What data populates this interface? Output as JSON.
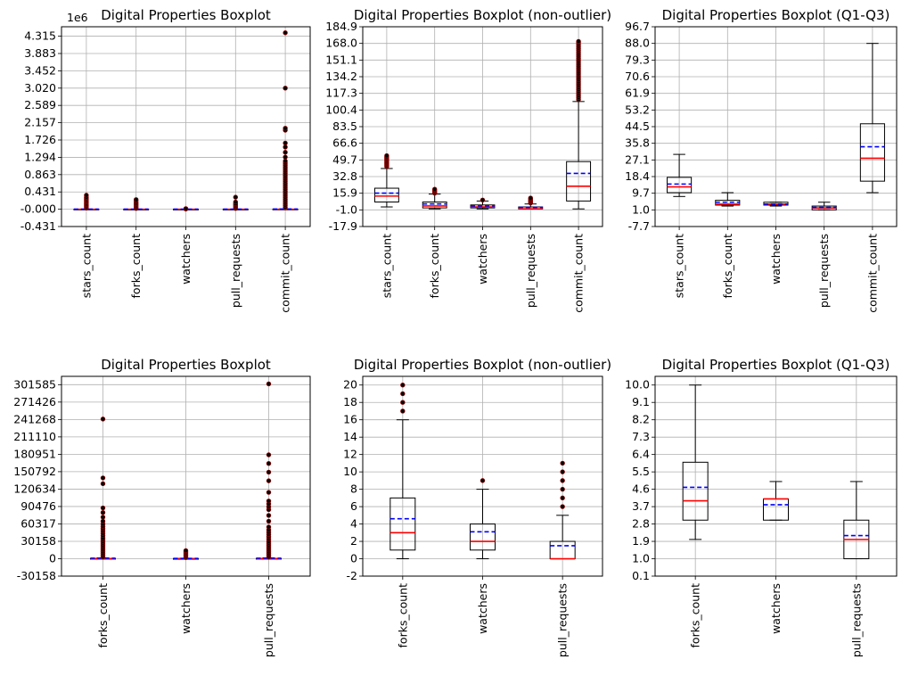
{
  "colors": {
    "median": "#ff0000",
    "mean": "#0000ff",
    "box": "#000000",
    "grid": "#b0b0b0",
    "flier_face": "#000000",
    "flier_edge": "#8b0000"
  },
  "chart_data": [
    {
      "type": "boxplot",
      "title": "Digital Properties Boxplot",
      "offset_text": "1e6",
      "categories": [
        "stars_count",
        "forks_count",
        "watchers",
        "pull_requests",
        "commit_count"
      ],
      "ylim": [
        -0.431,
        4.55
      ],
      "yticks": [
        -0.431,
        0,
        0.431,
        0.863,
        1.294,
        1.726,
        2.157,
        2.589,
        3.02,
        3.452,
        3.883,
        4.315
      ],
      "ytick_labels": [
        "-0.431",
        "-0.000",
        "0.431",
        "0.863",
        "1.294",
        "1.726",
        "2.157",
        "2.589",
        "3.020",
        "3.452",
        "3.883",
        "4.315"
      ],
      "grid": true,
      "boxes": [
        {
          "whislo": 0,
          "q1": 0,
          "med": 0,
          "q3": 0.002,
          "whishi": 0.005,
          "mean": 0.002
        },
        {
          "whislo": 0,
          "q1": 0,
          "med": 0,
          "q3": 0.001,
          "whishi": 0.003,
          "mean": 0.001
        },
        {
          "whislo": 0,
          "q1": 0,
          "med": 0,
          "q3": 0.001,
          "whishi": 0.002,
          "mean": 0.001
        },
        {
          "whislo": 0,
          "q1": 0,
          "med": 0,
          "q3": 0.001,
          "whishi": 0.002,
          "mean": 0.001
        },
        {
          "whislo": 0,
          "q1": 0,
          "med": 0,
          "q3": 0.003,
          "whishi": 0.01,
          "mean": 0.004
        }
      ],
      "fliers": [
        [
          0.03,
          0.06,
          0.09,
          0.12,
          0.15,
          0.18,
          0.21,
          0.24,
          0.27,
          0.3,
          0.35
        ],
        [
          0.02,
          0.05,
          0.08,
          0.11,
          0.14,
          0.17,
          0.21,
          0.24
        ],
        [
          0.005,
          0.01,
          0.015
        ],
        [
          0.02,
          0.05,
          0.08,
          0.11,
          0.14,
          0.18,
          0.3
        ],
        [
          0.05,
          0.1,
          0.15,
          0.2,
          0.25,
          0.3,
          0.35,
          0.4,
          0.45,
          0.5,
          0.55,
          0.6,
          0.65,
          0.7,
          0.75,
          0.8,
          0.85,
          0.9,
          0.95,
          1.0,
          1.05,
          1.1,
          1.15,
          1.2,
          1.3,
          1.42,
          1.55,
          1.65,
          1.97,
          2.02,
          3.02,
          4.4
        ]
      ]
    },
    {
      "type": "boxplot",
      "title": "Digital Properties Boxplot (non-outlier)",
      "categories": [
        "stars_count",
        "forks_count",
        "watchers",
        "pull_requests",
        "commit_count"
      ],
      "ylim": [
        -17.9,
        184.9
      ],
      "yticks": [
        -17.9,
        -1.0,
        15.9,
        32.8,
        49.7,
        66.6,
        83.5,
        100.4,
        117.3,
        134.2,
        151.1,
        168.0,
        184.9
      ],
      "ytick_labels": [
        "-17.9",
        "-1.0",
        "15.9",
        "32.8",
        "49.7",
        "66.6",
        "83.5",
        "100.4",
        "117.3",
        "134.2",
        "151.1",
        "168.0",
        "184.9"
      ],
      "grid": true,
      "boxes": [
        {
          "whislo": 2,
          "q1": 7,
          "med": 13,
          "q3": 21,
          "whishi": 41,
          "mean": 16
        },
        {
          "whislo": 0,
          "q1": 1,
          "med": 3,
          "q3": 7,
          "whishi": 15,
          "mean": 5
        },
        {
          "whislo": 0,
          "q1": 1,
          "med": 2,
          "q3": 4,
          "whishi": 8,
          "mean": 3
        },
        {
          "whislo": 0,
          "q1": 0,
          "med": 0,
          "q3": 2,
          "whishi": 5,
          "mean": 1.5
        },
        {
          "whislo": 0,
          "q1": 8,
          "med": 23,
          "q3": 48,
          "whishi": 109,
          "mean": 36
        }
      ],
      "fliers": [
        [
          43,
          44,
          45,
          46,
          47,
          48,
          49,
          50,
          51,
          52,
          53,
          54
        ],
        [
          16,
          17,
          18,
          19,
          20
        ],
        [
          9
        ],
        [
          6,
          7,
          8,
          9,
          10,
          11
        ],
        [
          111,
          113,
          115,
          117,
          119,
          121,
          123,
          125,
          127,
          129,
          131,
          133,
          135,
          137,
          139,
          141,
          143,
          145,
          147,
          149,
          151,
          153,
          155,
          157,
          159,
          161,
          163,
          165,
          167,
          169,
          170
        ]
      ]
    },
    {
      "type": "boxplot",
      "title": "Digital Properties Boxplot (Q1-Q3)",
      "categories": [
        "stars_count",
        "forks_count",
        "watchers",
        "pull_requests",
        "commit_count"
      ],
      "ylim": [
        -7.7,
        96.7
      ],
      "yticks": [
        -7.7,
        1.0,
        9.7,
        18.4,
        27.1,
        35.8,
        44.5,
        53.2,
        61.9,
        70.6,
        79.3,
        88.0,
        96.7
      ],
      "ytick_labels": [
        "-7.7",
        "1.0",
        "9.7",
        "18.4",
        "27.1",
        "35.8",
        "44.5",
        "53.2",
        "61.9",
        "70.6",
        "79.3",
        "88.0",
        "96.7"
      ],
      "grid": true,
      "boxes": [
        {
          "whislo": 8,
          "q1": 10,
          "med": 13,
          "q3": 18,
          "whishi": 30,
          "mean": 14.5
        },
        {
          "whislo": 3,
          "q1": 3.5,
          "med": 4,
          "q3": 6,
          "whishi": 10,
          "mean": 5
        },
        {
          "whislo": 3,
          "q1": 3.5,
          "med": 4,
          "q3": 5,
          "whishi": 5,
          "mean": 4
        },
        {
          "whislo": 1,
          "q1": 1,
          "med": 2,
          "q3": 3,
          "whishi": 5,
          "mean": 2.3
        },
        {
          "whislo": 10,
          "q1": 16,
          "med": 28,
          "q3": 46,
          "whishi": 88,
          "mean": 34
        }
      ],
      "fliers": [
        [],
        [],
        [],
        [],
        []
      ]
    },
    {
      "type": "boxplot",
      "title": "Digital Properties Boxplot",
      "categories": [
        "forks_count",
        "watchers",
        "pull_requests"
      ],
      "ylim": [
        -30158,
        316000
      ],
      "yticks": [
        -30158,
        0,
        30158,
        60317,
        90476,
        120634,
        150792,
        180951,
        211110,
        241268,
        271426,
        301585
      ],
      "ytick_labels": [
        "-30158",
        "0",
        "30158",
        "60317",
        "90476",
        "120634",
        "150792",
        "180951",
        "211110",
        "241268",
        "271426",
        "301585"
      ],
      "grid": true,
      "boxes": [
        {
          "whislo": 0,
          "q1": 0,
          "med": 0,
          "q3": 500,
          "whishi": 1500,
          "mean": 800
        },
        {
          "whislo": 0,
          "q1": 0,
          "med": 0,
          "q3": 300,
          "whishi": 800,
          "mean": 400
        },
        {
          "whislo": 0,
          "q1": 0,
          "med": 0,
          "q3": 500,
          "whishi": 1500,
          "mean": 800
        }
      ],
      "fliers": [
        [
          3000,
          6000,
          9000,
          12000,
          15000,
          18000,
          21000,
          24000,
          27000,
          30000,
          33000,
          36000,
          40000,
          44000,
          48000,
          52000,
          56000,
          60000,
          65000,
          72000,
          80000,
          88000,
          130000,
          140000,
          242000
        ],
        [
          2000,
          4000,
          6000,
          8000,
          10000,
          12000,
          14000
        ],
        [
          3000,
          6000,
          9000,
          12000,
          15000,
          18000,
          21000,
          24000,
          27000,
          30000,
          34000,
          38000,
          42000,
          46000,
          50000,
          55000,
          65000,
          75000,
          85000,
          90000,
          95000,
          100000,
          115000,
          135000,
          150000,
          165000,
          180000,
          303000
        ]
      ]
    },
    {
      "type": "boxplot",
      "title": "Digital Properties Boxplot (non-outlier)",
      "categories": [
        "forks_count",
        "watchers",
        "pull_requests"
      ],
      "ylim": [
        -2,
        21
      ],
      "yticks": [
        -2,
        0,
        2,
        4,
        6,
        8,
        10,
        12,
        14,
        16,
        18,
        20
      ],
      "ytick_labels": [
        "-2",
        "0",
        "2",
        "4",
        "6",
        "8",
        "10",
        "12",
        "14",
        "16",
        "18",
        "20"
      ],
      "grid": true,
      "boxes": [
        {
          "whislo": 0,
          "q1": 1,
          "med": 3,
          "q3": 7,
          "whishi": 16,
          "mean": 4.6
        },
        {
          "whislo": 0,
          "q1": 1,
          "med": 2,
          "q3": 4,
          "whishi": 8,
          "mean": 3.1
        },
        {
          "whislo": 0,
          "q1": 0,
          "med": 0,
          "q3": 2,
          "whishi": 5,
          "mean": 1.5
        }
      ],
      "fliers": [
        [
          17,
          18,
          19,
          20
        ],
        [
          9
        ],
        [
          6,
          7,
          8,
          9,
          10,
          11
        ]
      ]
    },
    {
      "type": "boxplot",
      "title": "Digital Properties Boxplot (Q1-Q3)",
      "categories": [
        "forks_count",
        "watchers",
        "pull_requests"
      ],
      "ylim": [
        0.1,
        10.45
      ],
      "yticks": [
        0.1,
        1.0,
        1.9,
        2.8,
        3.7,
        4.6,
        5.5,
        6.4,
        7.3,
        8.2,
        9.1,
        10.0
      ],
      "ytick_labels": [
        "0.1",
        "1.0",
        "1.9",
        "2.8",
        "3.7",
        "4.6",
        "5.5",
        "6.4",
        "7.3",
        "8.2",
        "9.1",
        "10.0"
      ],
      "grid": true,
      "boxes": [
        {
          "whislo": 2,
          "q1": 3,
          "med": 4,
          "q3": 6,
          "whishi": 10,
          "mean": 4.7
        },
        {
          "whislo": 3,
          "q1": 3,
          "med": 4.1,
          "q3": 4.1,
          "whishi": 5,
          "mean": 3.8
        },
        {
          "whislo": 1,
          "q1": 1,
          "med": 2,
          "q3": 3,
          "whishi": 5,
          "mean": 2.2
        }
      ],
      "fliers": [
        [],
        [],
        []
      ]
    }
  ]
}
